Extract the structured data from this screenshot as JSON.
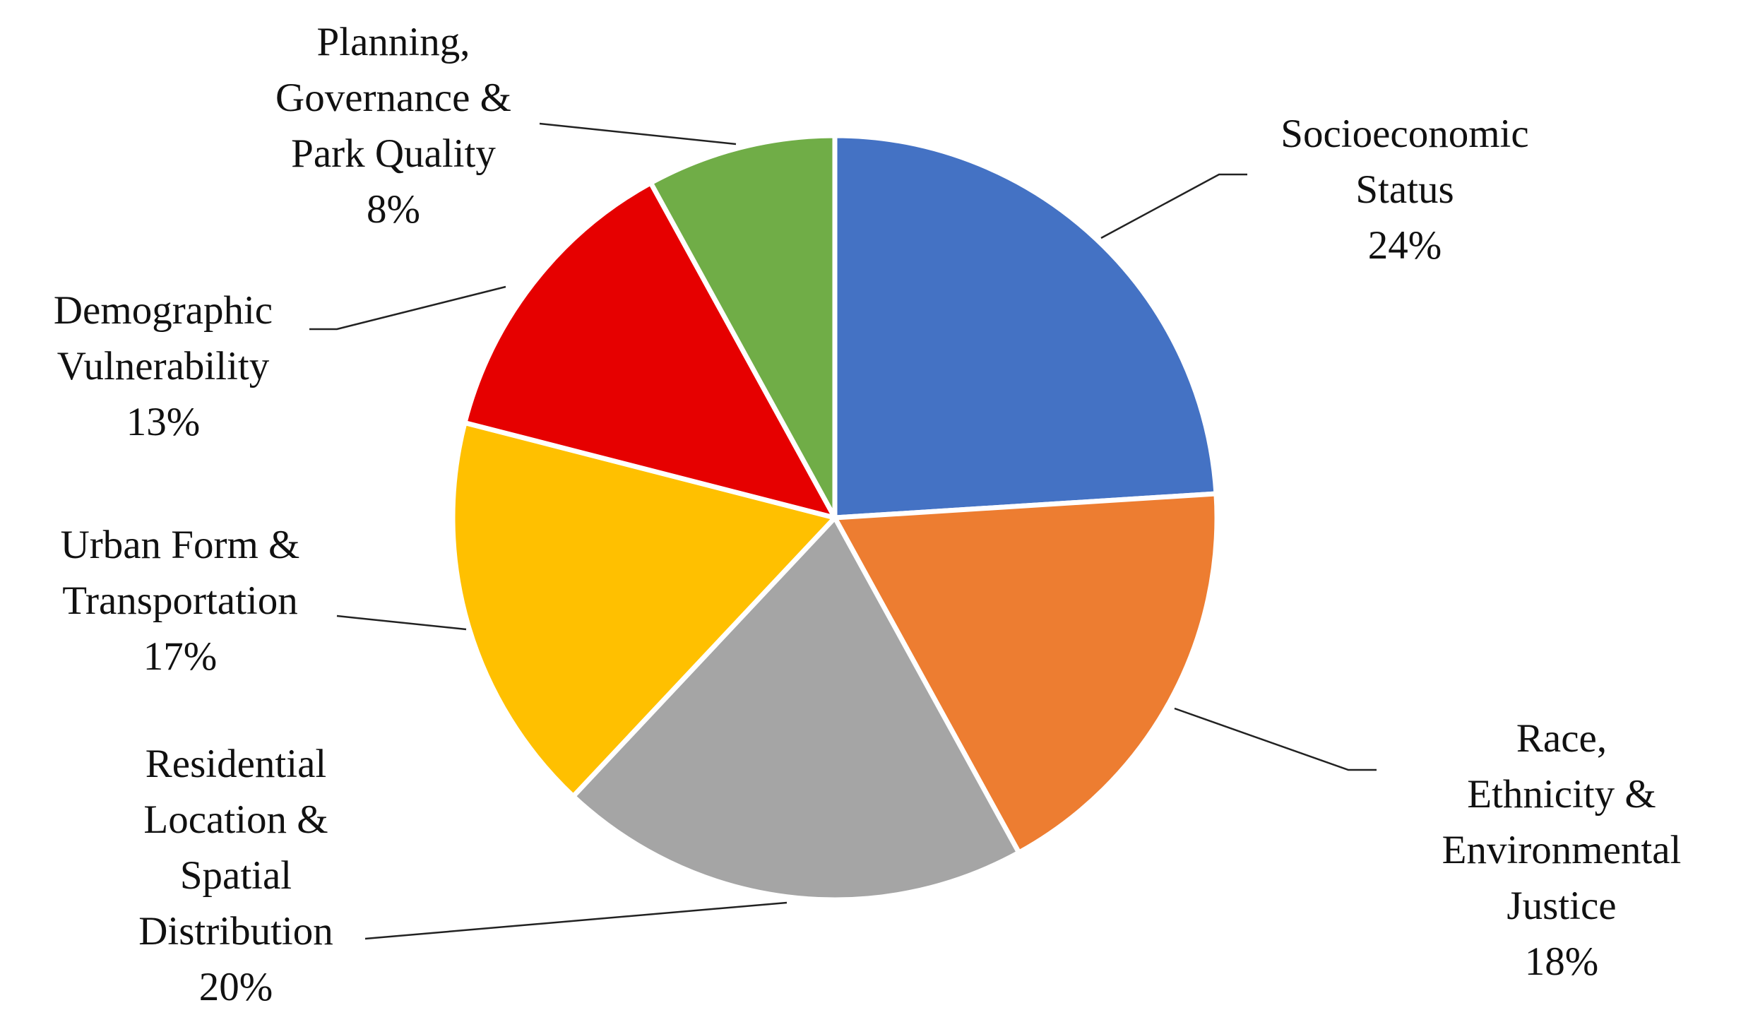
{
  "chart_data": {
    "type": "pie",
    "categories": [
      "Socioeconomic\nStatus",
      "Race, Ethnicity &\nEnvironmental\nJustice",
      "Residential\nLocation &\nSpatial\nDistribution",
      "Urban Form &\nTransportation",
      "Demographic\nVulnerability",
      "Planning,\nGovernance &\nPark Quality"
    ],
    "values": [
      24,
      18,
      20,
      17,
      13,
      8
    ],
    "value_labels": [
      "24%",
      "18%",
      "20%",
      "17%",
      "13%",
      "8%"
    ],
    "colors": [
      "#4472c4",
      "#ed7d31",
      "#a5a5a5",
      "#ffc000",
      "#e60000",
      "#70ad47"
    ]
  }
}
